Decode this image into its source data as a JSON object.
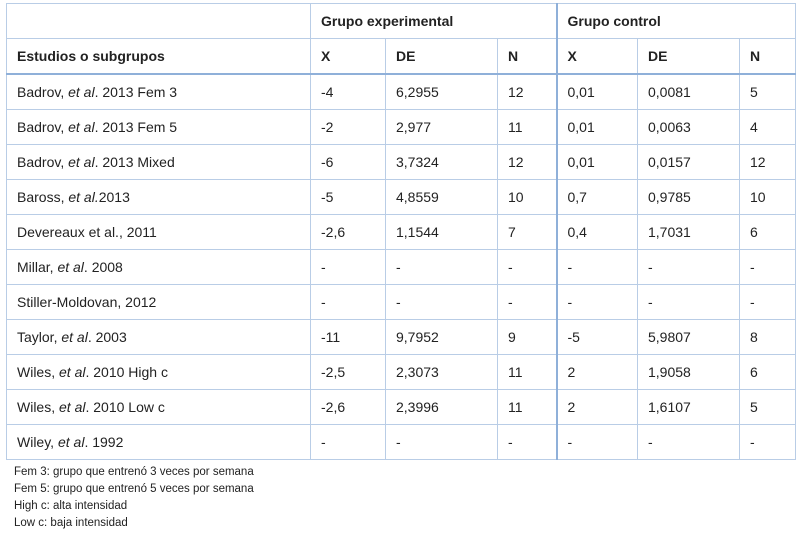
{
  "table": {
    "group_header": {
      "experimental": "Grupo experimental",
      "control": "Grupo control"
    },
    "columns": [
      "Estudios o subgrupos",
      "X",
      "DE",
      "N",
      "X",
      "DE",
      "N"
    ],
    "rows": [
      {
        "study_prefix": "Badrov, ",
        "study_etal": "et al",
        "study_suffix": ". 2013 Fem 3",
        "exp_x": "-4",
        "exp_de": "6,2955",
        "exp_n": "12",
        "ctl_x": "0,01",
        "ctl_de": "0,0081",
        "ctl_n": "5"
      },
      {
        "study_prefix": "Badrov, ",
        "study_etal": "et al",
        "study_suffix": ". 2013 Fem 5",
        "exp_x": "-2",
        "exp_de": "2,977",
        "exp_n": "11",
        "ctl_x": "0,01",
        "ctl_de": "0,0063",
        "ctl_n": "4"
      },
      {
        "study_prefix": "Badrov, ",
        "study_etal": "et al",
        "study_suffix": ". 2013 Mixed",
        "exp_x": "-6",
        "exp_de": "3,7324",
        "exp_n": "12",
        "ctl_x": "0,01",
        "ctl_de": "0,0157",
        "ctl_n": "12"
      },
      {
        "study_prefix": "Baross, ",
        "study_etal": "et al.",
        "study_suffix": "2013",
        "exp_x": "-5",
        "exp_de": "4,8559",
        "exp_n": "10",
        "ctl_x": "0,7",
        "ctl_de": "0,9785",
        "ctl_n": "10"
      },
      {
        "study_prefix": "Devereaux et al., 2011",
        "study_etal": "",
        "study_suffix": "",
        "exp_x": "-2,6",
        "exp_de": "1,1544",
        "exp_n": "7",
        "ctl_x": "0,4",
        "ctl_de": "1,7031",
        "ctl_n": "6"
      },
      {
        "study_prefix": "Millar, ",
        "study_etal": "et al",
        "study_suffix": ". 2008",
        "exp_x": "-",
        "exp_de": "-",
        "exp_n": "-",
        "ctl_x": "-",
        "ctl_de": "-",
        "ctl_n": "-"
      },
      {
        "study_prefix": "Stiller-Moldovan, 2012",
        "study_etal": "",
        "study_suffix": "",
        "exp_x": "-",
        "exp_de": "-",
        "exp_n": "-",
        "ctl_x": "-",
        "ctl_de": "-",
        "ctl_n": "-"
      },
      {
        "study_prefix": "Taylor, ",
        "study_etal": "et al",
        "study_suffix": ". 2003",
        "exp_x": "-11",
        "exp_de": "9,7952",
        "exp_n": "9",
        "ctl_x": "-5",
        "ctl_de": "5,9807",
        "ctl_n": "8"
      },
      {
        "study_prefix": "Wiles, ",
        "study_etal": "et al",
        "study_suffix": ". 2010 High c",
        "exp_x": "-2,5",
        "exp_de": "2,3073",
        "exp_n": "11",
        "ctl_x": "2",
        "ctl_de": "1,9058",
        "ctl_n": "6"
      },
      {
        "study_prefix": "Wiles, ",
        "study_etal": "et al",
        "study_suffix": ". 2010 Low c",
        "exp_x": "-2,6",
        "exp_de": "2,3996",
        "exp_n": "11",
        "ctl_x": "2",
        "ctl_de": "1,6107",
        "ctl_n": "5"
      },
      {
        "study_prefix": "Wiley, ",
        "study_etal": "et al",
        "study_suffix": ". 1992",
        "exp_x": "-",
        "exp_de": "-",
        "exp_n": "-",
        "ctl_x": "-",
        "ctl_de": "-",
        "ctl_n": "-"
      }
    ]
  },
  "notes": [
    "Fem 3: grupo que entrenó 3 veces por semana",
    "Fem 5: grupo que entrenó 5 veces por semana",
    "High c: alta intensidad",
    "Low c: baja intensidad"
  ]
}
